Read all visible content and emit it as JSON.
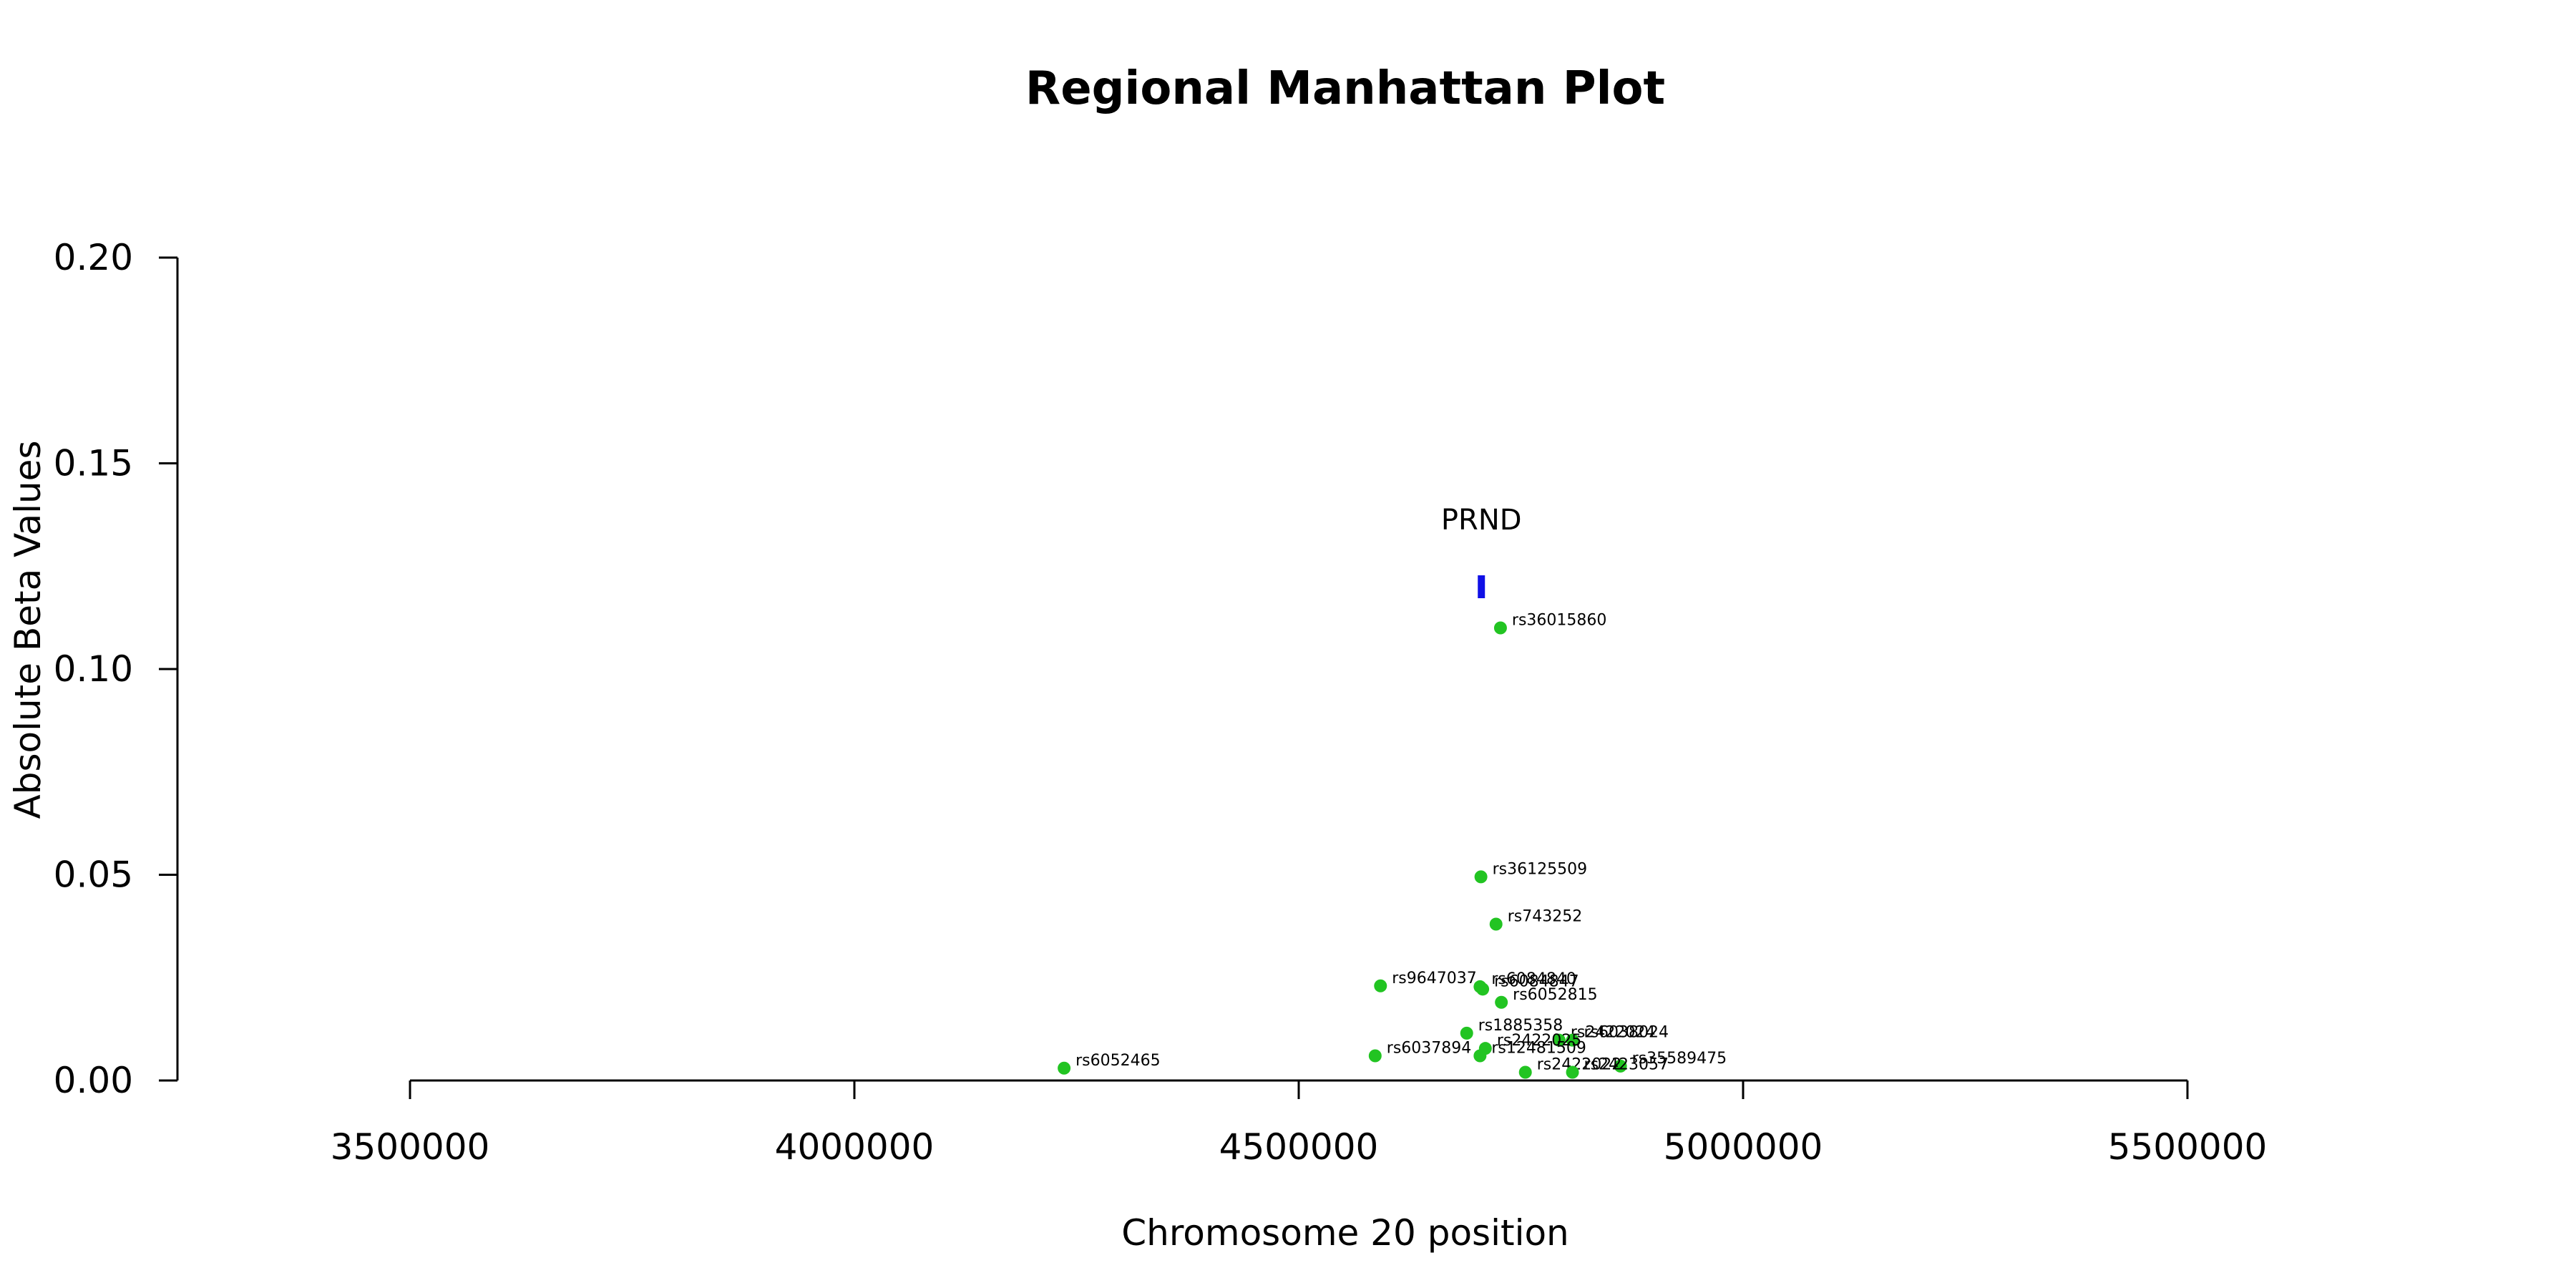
{
  "chart_data": {
    "type": "scatter",
    "title": "Regional Manhattan Plot",
    "xlabel": "Chromosome 20 position",
    "ylabel": "Absolute Beta Values",
    "xlim": [
      3500000,
      5500000
    ],
    "ylim": [
      0,
      0.2
    ],
    "x_ticks": [
      "3500000",
      "4000000",
      "4500000",
      "5000000",
      "5500000"
    ],
    "y_ticks": [
      "0.00",
      "0.05",
      "0.10",
      "0.15",
      "0.20"
    ],
    "grid": false,
    "colors": {
      "points": "#22c422",
      "gene": "#1010e6"
    },
    "genes": [
      {
        "name": "PRND",
        "x_start": 4702000,
        "x_end": 4709000,
        "y": 0.12
      }
    ],
    "points": [
      {
        "label": "rs36015860",
        "x": 4727000,
        "y": 0.11
      },
      {
        "label": "rs36125509",
        "x": 4705000,
        "y": 0.0495
      },
      {
        "label": "rs743252",
        "x": 4722000,
        "y": 0.038
      },
      {
        "label": "rs9647037",
        "x": 4592000,
        "y": 0.023
      },
      {
        "label": "rs6084840",
        "x": 4704000,
        "y": 0.0228
      },
      {
        "label": "rs6084847",
        "x": 4707000,
        "y": 0.0222
      },
      {
        "label": "rs6052815",
        "x": 4728000,
        "y": 0.019
      },
      {
        "label": "rs1885358",
        "x": 4689000,
        "y": 0.0115
      },
      {
        "label": "rs2422024",
        "x": 4793000,
        "y": 0.0098
      },
      {
        "label": "rs6038024",
        "x": 4808000,
        "y": 0.0098
      },
      {
        "label": "rs2422025",
        "x": 4710000,
        "y": 0.0078
      },
      {
        "label": "rs6037894",
        "x": 4586000,
        "y": 0.006
      },
      {
        "label": "rs12481509",
        "x": 4704000,
        "y": 0.006
      },
      {
        "label": "rs35589475",
        "x": 4862000,
        "y": 0.0035
      },
      {
        "label": "rs6052465",
        "x": 4236000,
        "y": 0.003
      },
      {
        "label": "rs2422022",
        "x": 4755000,
        "y": 0.002
      },
      {
        "label": "rs2423057",
        "x": 4808000,
        "y": 0.002
      }
    ]
  }
}
